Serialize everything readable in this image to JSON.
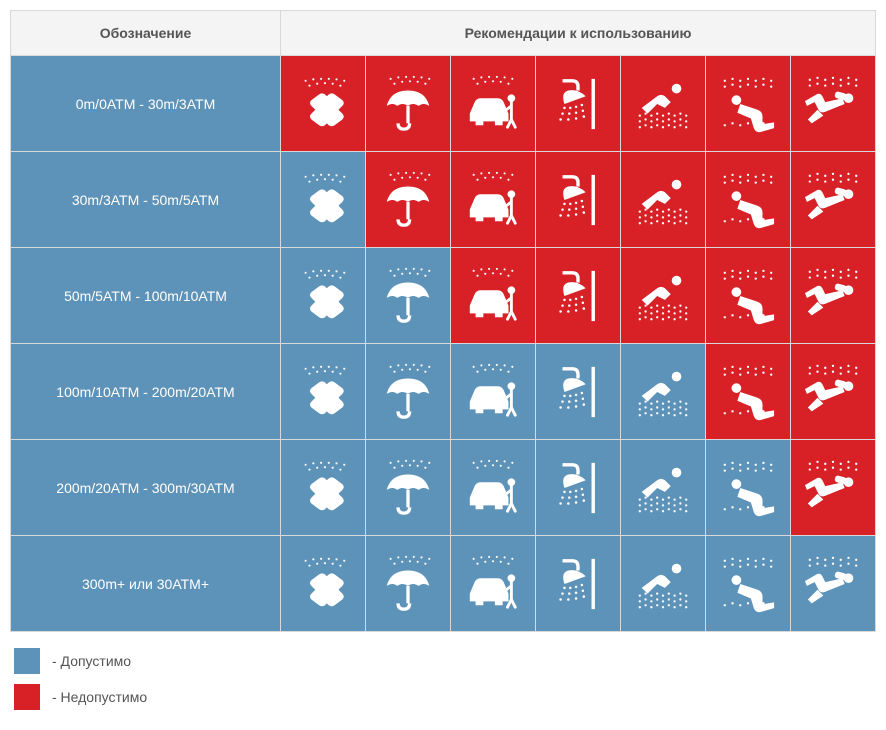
{
  "colors": {
    "allowed": "#5d93b9",
    "forbidden": "#d82027",
    "icon": "#ffffff",
    "header_bg": "#f4f4f4",
    "border": "#d9d9d9",
    "text": "#555555"
  },
  "headers": {
    "col1": "Обозначение",
    "col2": "Рекомендации к использованию"
  },
  "legend": {
    "allowed": "-  Допустимо",
    "forbidden": "-  Недопустимо"
  },
  "icons": [
    "hands",
    "umbrella",
    "carwash",
    "shower",
    "swim",
    "snorkel",
    "scuba"
  ],
  "rows": [
    {
      "label": "0m/0ATM -  30m/3ATM",
      "cells": [
        false,
        false,
        false,
        false,
        false,
        false,
        false
      ]
    },
    {
      "label": "30m/3ATM - 50m/5ATM",
      "cells": [
        true,
        false,
        false,
        false,
        false,
        false,
        false
      ]
    },
    {
      "label": "50m/5ATM - 100m/10ATM",
      "cells": [
        true,
        true,
        false,
        false,
        false,
        false,
        false
      ]
    },
    {
      "label": "100m/10ATM - 200m/20ATM",
      "cells": [
        true,
        true,
        true,
        true,
        true,
        false,
        false
      ]
    },
    {
      "label": "200m/20ATM - 300m/30ATM",
      "cells": [
        true,
        true,
        true,
        true,
        true,
        true,
        false
      ]
    },
    {
      "label": "300m+ или 30ATM+",
      "cells": [
        true,
        true,
        true,
        true,
        true,
        true,
        true
      ]
    }
  ]
}
